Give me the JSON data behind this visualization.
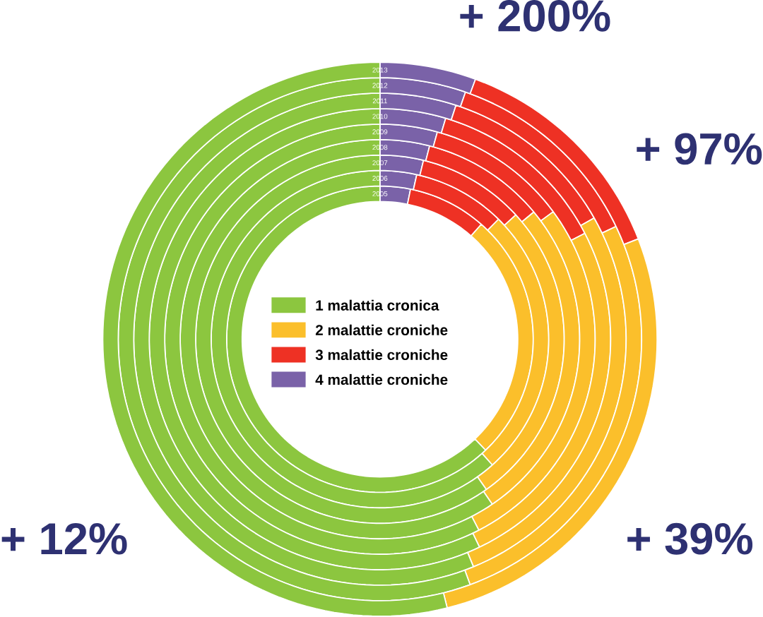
{
  "chart_data": {
    "type": "donut",
    "categories": [
      "1 malattia cronica",
      "2 malattie croniche",
      "3 malattie croniche",
      "4 malattie croniche"
    ],
    "colors": [
      "#8cc63f",
      "#fbbf2b",
      "#ee3124",
      "#7a62a8"
    ],
    "series": [
      {
        "name": "2005",
        "values": [
          62.1,
          26.4,
          8.3,
          3.2
        ]
      },
      {
        "name": "2006",
        "values": [
          61.6,
          26.0,
          8.9,
          3.5
        ]
      },
      {
        "name": "2007",
        "values": [
          59.8,
          27.0,
          9.4,
          3.8
        ]
      },
      {
        "name": "2008",
        "values": [
          59.5,
          26.5,
          10.0,
          4.0
        ]
      },
      {
        "name": "2009",
        "values": [
          57.6,
          27.5,
          10.6,
          4.3
        ]
      },
      {
        "name": "2010",
        "values": [
          57.1,
          25.5,
          12.8,
          4.6
        ]
      },
      {
        "name": "2011",
        "values": [
          56.2,
          27.0,
          11.8,
          5.0
        ]
      },
      {
        "name": "2012",
        "values": [
          55.6,
          26.5,
          12.6,
          5.3
        ]
      },
      {
        "name": "2013",
        "values": [
          53.9,
          27.0,
          13.5,
          5.6
        ]
      }
    ],
    "legend": "center",
    "annotations": [
      "+ 200%",
      "+ 97%",
      "+ 39%",
      "+ 12%"
    ]
  }
}
